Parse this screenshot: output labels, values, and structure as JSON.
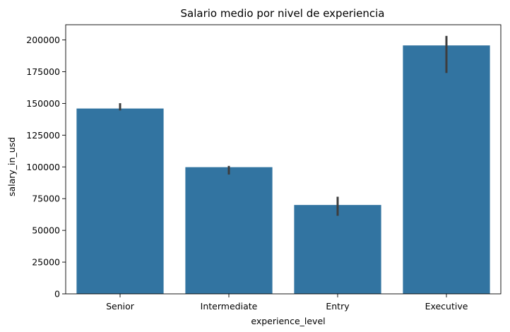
{
  "chart_data": {
    "type": "bar",
    "title": "Salario medio por nivel de experiencia",
    "xlabel": "experience_level",
    "ylabel": "salary_in_usd",
    "categories": [
      "Senior",
      "Intermediate",
      "Entry",
      "Executive"
    ],
    "values": [
      146000,
      99800,
      70000,
      195700
    ],
    "error_low": [
      144500,
      94000,
      61500,
      174000
    ],
    "error_high": [
      150200,
      100800,
      76500,
      203200
    ],
    "ylim": [
      0,
      212000
    ],
    "yticks": [
      0,
      25000,
      50000,
      75000,
      100000,
      125000,
      150000,
      175000,
      200000
    ],
    "ytick_labels": [
      "0",
      "25000",
      "50000",
      "75000",
      "100000",
      "125000",
      "150000",
      "175000",
      "200000"
    ],
    "bar_color": "#3274a1",
    "error_color": "#3d3d3d",
    "grid": false,
    "legend": "none"
  }
}
